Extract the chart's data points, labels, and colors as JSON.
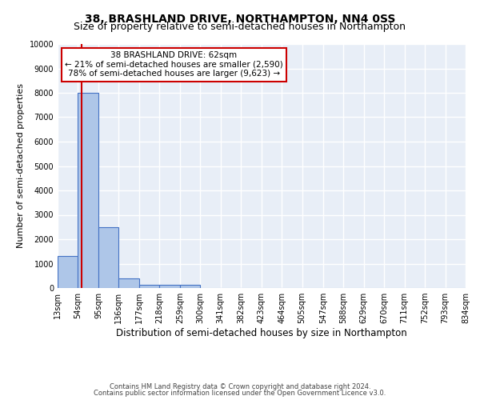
{
  "title": "38, BRASHLAND DRIVE, NORTHAMPTON, NN4 0SS",
  "subtitle": "Size of property relative to semi-detached houses in Northampton",
  "xlabel_bottom": "Distribution of semi-detached houses by size in Northampton",
  "ylabel": "Number of semi-detached properties",
  "footnote1": "Contains HM Land Registry data © Crown copyright and database right 2024.",
  "footnote2": "Contains public sector information licensed under the Open Government Licence v3.0.",
  "bin_edges": [
    13,
    54,
    95,
    136,
    177,
    218,
    259,
    300,
    341,
    382,
    423,
    464,
    505,
    547,
    588,
    629,
    670,
    711,
    752,
    793,
    834
  ],
  "bar_heights": [
    1300,
    8000,
    2500,
    380,
    130,
    130,
    130,
    0,
    0,
    0,
    0,
    0,
    0,
    0,
    0,
    0,
    0,
    0,
    0,
    0
  ],
  "bar_color": "#aec6e8",
  "bar_edge_color": "#4472c4",
  "property_size": 62,
  "red_line_color": "#cc0000",
  "annotation_text_line1": "38 BRASHLAND DRIVE: 62sqm",
  "annotation_text_line2": "← 21% of semi-detached houses are smaller (2,590)",
  "annotation_text_line3": "78% of semi-detached houses are larger (9,623) →",
  "annotation_box_color": "#ffffff",
  "annotation_box_edge_color": "#cc0000",
  "ylim": [
    0,
    10000
  ],
  "yticks": [
    0,
    1000,
    2000,
    3000,
    4000,
    5000,
    6000,
    7000,
    8000,
    9000,
    10000
  ],
  "bg_color": "#e8eef7",
  "grid_color": "#ffffff",
  "title_fontsize": 10,
  "subtitle_fontsize": 9,
  "tick_fontsize": 7,
  "ylabel_fontsize": 8,
  "annotation_fontsize": 7.5,
  "xlabel_fontsize": 8.5,
  "footnote_fontsize": 6
}
